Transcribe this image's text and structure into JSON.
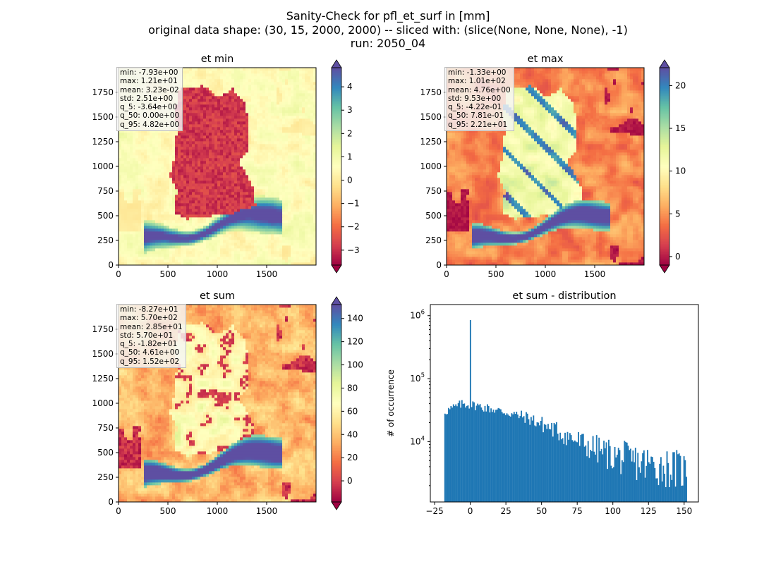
{
  "figure": {
    "title_lines": [
      "Sanity-Check for pfl_et_surf in [mm]",
      "original data shape: (30, 15, 2000, 2000) -- sliced with: (slice(None, None, None), -1)",
      "run: 2050_04"
    ]
  },
  "chart_data": [
    {
      "type": "heatmap",
      "title": "et min",
      "xlim": [
        0,
        2000
      ],
      "ylim": [
        0,
        2000
      ],
      "x_ticks": [
        0,
        500,
        1000,
        1500
      ],
      "y_ticks": [
        0,
        250,
        500,
        750,
        1000,
        1250,
        1500,
        1750
      ],
      "colormap": "Spectral",
      "colorbar": {
        "range": [
          -3.64,
          4.82
        ],
        "ticks": [
          -3,
          -2,
          -1,
          0,
          1,
          2,
          3,
          4
        ],
        "extend": "both"
      },
      "stats": [
        "min: -7.93e+00",
        "max: 1.21e+01",
        "mean: 3.23e-02",
        "std: 2.51e+00",
        "q_5: -3.64e+00",
        "q_50: 0.00e+00",
        "q_95: 4.82e+00"
      ]
    },
    {
      "type": "heatmap",
      "title": "et max",
      "xlim": [
        0,
        2000
      ],
      "ylim": [
        0,
        2000
      ],
      "x_ticks": [
        0,
        500,
        1000,
        1500
      ],
      "y_ticks": [
        0,
        250,
        500,
        750,
        1000,
        1250,
        1500,
        1750
      ],
      "colormap": "Spectral",
      "colorbar": {
        "range": [
          -1.0,
          22.1
        ],
        "ticks": [
          0,
          5,
          10,
          15,
          20
        ],
        "extend": "both"
      },
      "stats": [
        "min: -1.33e+00",
        "max: 1.01e+02",
        "mean: 4.76e+00",
        "std: 9.53e+00",
        "q_5: -4.22e-01",
        "q_50: 7.81e-01",
        "q_95: 2.21e+01"
      ]
    },
    {
      "type": "heatmap",
      "title": "et sum",
      "xlim": [
        0,
        2000
      ],
      "ylim": [
        0,
        2000
      ],
      "x_ticks": [
        0,
        500,
        1000,
        1500
      ],
      "y_ticks": [
        0,
        250,
        500,
        750,
        1000,
        1250,
        1500,
        1750
      ],
      "colormap": "Spectral",
      "colorbar": {
        "range": [
          -18.2,
          152
        ],
        "ticks": [
          0,
          20,
          40,
          60,
          80,
          100,
          120,
          140
        ],
        "extend": "both"
      },
      "stats": [
        "min: -8.27e+01",
        "max: 5.70e+02",
        "mean: 2.85e+01",
        "std: 5.70e+01",
        "q_5: -1.82e+01",
        "q_50: 4.61e+00",
        "q_95: 1.52e+02"
      ]
    },
    {
      "type": "bar",
      "title": "et sum - distribution",
      "ylabel": "# of occurrence",
      "yscale": "log",
      "xlim": [
        -28,
        160
      ],
      "ylim": [
        1100,
        1500000
      ],
      "x_ticks": [
        -25,
        0,
        25,
        50,
        75,
        100,
        125,
        150
      ],
      "y_ticks": [
        10000,
        100000,
        1000000
      ],
      "color": "#1f77b4",
      "bin_range": [
        -18.2,
        152
      ],
      "bins": 200,
      "peak": {
        "x": 0,
        "count": 850000
      },
      "profile": {
        "x": [
          -18,
          -5,
          5,
          20,
          40,
          60,
          80,
          100,
          120,
          150
        ],
        "count": [
          30000,
          40000,
          37000,
          31000,
          24000,
          15000,
          9000,
          6000,
          4500,
          3500
        ]
      }
    }
  ]
}
